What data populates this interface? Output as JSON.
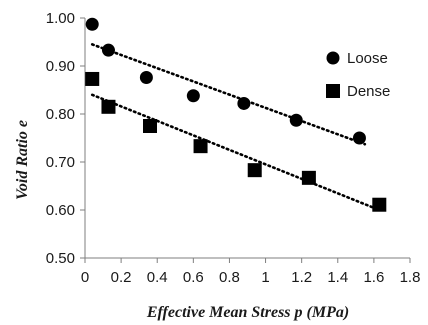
{
  "chart_data": {
    "type": "scatter",
    "title": "",
    "xlabel": "Effective Mean Stress  p (MPa)",
    "ylabel": "Void Ratio  e",
    "xlim": [
      0,
      1.8
    ],
    "ylim": [
      0.5,
      1.0
    ],
    "x_ticks": [
      "0",
      "0.2",
      "0.4",
      "0.6",
      "0.8",
      "1",
      "1.2",
      "1.4",
      "1.6",
      "1.8"
    ],
    "y_ticks": [
      "0.50",
      "0.60",
      "0.70",
      "0.80",
      "0.90",
      "1.00"
    ],
    "grid": false,
    "legend_position": "right",
    "series": [
      {
        "name": "Loose",
        "marker": "circle",
        "color": "#000000",
        "x": [
          0.04,
          0.13,
          0.34,
          0.6,
          0.88,
          1.17,
          1.52
        ],
        "y": [
          0.987,
          0.933,
          0.876,
          0.838,
          0.822,
          0.787,
          0.75
        ],
        "trendline": {
          "style": "dotted",
          "x": [
            0.04,
            1.55
          ],
          "y": [
            0.945,
            0.737
          ]
        }
      },
      {
        "name": "Dense",
        "marker": "square",
        "color": "#000000",
        "x": [
          0.04,
          0.13,
          0.36,
          0.64,
          0.94,
          1.24,
          1.63
        ],
        "y": [
          0.873,
          0.815,
          0.775,
          0.733,
          0.683,
          0.667,
          0.611
        ],
        "trendline": {
          "style": "dotted",
          "x": [
            0.04,
            1.63
          ],
          "y": [
            0.84,
            0.6
          ]
        }
      }
    ]
  }
}
